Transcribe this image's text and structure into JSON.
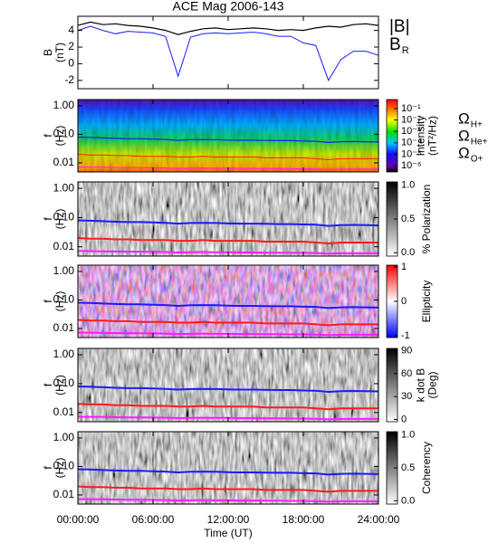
{
  "chart_data": [
    {
      "type": "line",
      "title": "ACE Mag 2006-143",
      "ylabel": [
        "B",
        "(nT)"
      ],
      "xlim": [
        0,
        24
      ],
      "ylim": [
        -3,
        5.7
      ],
      "yticks": [
        -2,
        0,
        2,
        4
      ],
      "x": [
        0,
        1,
        2,
        3,
        4,
        5,
        6,
        7,
        8,
        9,
        10,
        11,
        12,
        13,
        14,
        15,
        16,
        17,
        18,
        19,
        20,
        21,
        22,
        23,
        24
      ],
      "series": [
        {
          "name": "|B|",
          "color": "#000000",
          "values": [
            4.6,
            5.0,
            4.7,
            4.8,
            4.6,
            4.5,
            4.3,
            4.0,
            3.5,
            3.9,
            4.2,
            4.3,
            4.1,
            4.2,
            4.3,
            4.2,
            4.0,
            4.1,
            4.0,
            4.3,
            4.5,
            4.4,
            4.7,
            4.8,
            4.6
          ]
        },
        {
          "name": "B",
          "subscript": "R",
          "color": "#1a1aff",
          "values": [
            4.0,
            4.5,
            4.0,
            3.6,
            3.9,
            3.8,
            3.7,
            3.3,
            -1.5,
            3.2,
            3.6,
            3.7,
            3.6,
            3.7,
            3.8,
            3.6,
            3.3,
            3.3,
            2.5,
            2.2,
            -2.0,
            0.5,
            1.5,
            1.5,
            1.0
          ]
        }
      ]
    },
    {
      "type": "spectrogram",
      "ylabel": [
        "f",
        "(Hz)"
      ],
      "log_y": true,
      "xlim": [
        0,
        24
      ],
      "ylim": [
        0.0048,
        1.66
      ],
      "yticks": [
        {
          "value": 1,
          "label": "1.00"
        },
        {
          "value": 0.1,
          "label": "0.10"
        },
        0.01
      ],
      "colorbar": {
        "label": [
          "Intensity",
          "(nT²/Hz)"
        ],
        "colormap": "rainbow",
        "log": true,
        "lim": [
          2.8e-07,
          0.62
        ],
        "ticks": [
          {
            "value": 0.1,
            "label": "10⁻¹"
          },
          {
            "value": 0.01,
            "label": "10⁻²"
          },
          {
            "value": 0.001,
            "label": "10⁻³"
          },
          {
            "value": 0.0001,
            "label": "10⁻⁴"
          },
          {
            "value": 1e-05,
            "label": "10⁻⁵"
          },
          {
            "value": 1e-06,
            "label": "10⁻⁶"
          }
        ]
      },
      "x": [
        0,
        1,
        2,
        3,
        4,
        5,
        6,
        7,
        8,
        9,
        10,
        11,
        12,
        13,
        14,
        15,
        16,
        17,
        18,
        19,
        20,
        21,
        22,
        23,
        24
      ],
      "series": [
        {
          "name": "Ω",
          "subscript": "H+",
          "color": "#1a1aff",
          "values": [
            0.08,
            0.078,
            0.075,
            0.072,
            0.07,
            0.07,
            0.068,
            0.066,
            0.062,
            0.065,
            0.066,
            0.065,
            0.063,
            0.062,
            0.062,
            0.061,
            0.06,
            0.06,
            0.058,
            0.057,
            0.052,
            0.055,
            0.056,
            0.055,
            0.054
          ]
        },
        {
          "name": "Ω",
          "subscript": "He+",
          "color": "#ff1a1a",
          "values": [
            0.02,
            0.019,
            0.019,
            0.018,
            0.018,
            0.017,
            0.017,
            0.017,
            0.016,
            0.016,
            0.017,
            0.016,
            0.016,
            0.016,
            0.016,
            0.015,
            0.015,
            0.015,
            0.015,
            0.014,
            0.013,
            0.014,
            0.014,
            0.014,
            0.014
          ]
        },
        {
          "name": "Ω",
          "subscript": "O+",
          "color": "#ff1aff",
          "values": [
            0.0072,
            0.0071,
            0.007,
            0.0069,
            0.0068,
            0.0068,
            0.0067,
            0.0066,
            0.0064,
            0.0065,
            0.0066,
            0.0065,
            0.0065,
            0.0064,
            0.0064,
            0.0063,
            0.0063,
            0.0062,
            0.0062,
            0.0061,
            0.0058,
            0.006,
            0.006,
            0.006,
            0.006
          ]
        }
      ]
    },
    {
      "type": "spectrogram",
      "ylabel": [
        "f",
        "(Hz)"
      ],
      "log_y": true,
      "xlim": [
        0,
        24
      ],
      "ylim": [
        0.0048,
        1.66
      ],
      "yticks": [
        {
          "value": 1,
          "label": "1.00"
        },
        {
          "value": 0.1,
          "label": "0.10"
        },
        0.01
      ],
      "colorbar": {
        "label": [
          "% Polarization"
        ],
        "colormap": "gray",
        "log": false,
        "lim": [
          -0.05,
          1.05
        ],
        "ticks": [
          {
            "value": 0,
            "label": "0.0"
          },
          0.5,
          {
            "value": 1,
            "label": "1.0"
          }
        ]
      }
    },
    {
      "type": "spectrogram",
      "ylabel": [
        "f",
        "(Hz)"
      ],
      "log_y": true,
      "xlim": [
        0,
        24
      ],
      "ylim": [
        0.0048,
        1.66
      ],
      "yticks": [
        {
          "value": 1,
          "label": "1.00"
        },
        {
          "value": 0.1,
          "label": "0.10"
        },
        0.01
      ],
      "colorbar": {
        "label": [
          "Ellipticity"
        ],
        "colormap": "bwr",
        "log": false,
        "lim": [
          -1.05,
          1.05
        ],
        "ticks": [
          -1,
          0,
          1
        ]
      }
    },
    {
      "type": "spectrogram",
      "ylabel": [
        "f",
        "(Hz)"
      ],
      "log_y": true,
      "xlim": [
        0,
        24
      ],
      "ylim": [
        0.0048,
        1.66
      ],
      "yticks": [
        {
          "value": 1,
          "label": "1.00"
        },
        {
          "value": 0.1,
          "label": "0.10"
        },
        0.01
      ],
      "colorbar": {
        "label": [
          "k dot B",
          "(Deg)"
        ],
        "colormap": "gray",
        "log": false,
        "lim": [
          -3,
          93
        ],
        "ticks": [
          0,
          30,
          60,
          90
        ]
      }
    },
    {
      "type": "spectrogram",
      "ylabel": [
        "f",
        "(Hz)"
      ],
      "log_y": true,
      "xlim": [
        0,
        24
      ],
      "ylim": [
        0.0048,
        1.66
      ],
      "yticks": [
        {
          "value": 1,
          "label": "1.00"
        },
        {
          "value": 0.1,
          "label": "0.10"
        },
        0.01
      ],
      "colorbar": {
        "label": [
          "Coherency"
        ],
        "colormap": "gray",
        "log": false,
        "lim": [
          -0.05,
          1.05
        ],
        "ticks": [
          {
            "value": 0,
            "label": "0.0"
          },
          0.5,
          {
            "value": 1,
            "label": "1.0"
          }
        ]
      },
      "xlabel": "Time (UT)",
      "xticks": [
        {
          "value": 0,
          "label": "00:00:00"
        },
        {
          "value": 6,
          "label": "06:00:00"
        },
        {
          "value": 12,
          "label": "12:00:00"
        },
        {
          "value": 18,
          "label": "18:00:00"
        },
        {
          "value": 24,
          "label": "24:00:00"
        }
      ]
    }
  ]
}
